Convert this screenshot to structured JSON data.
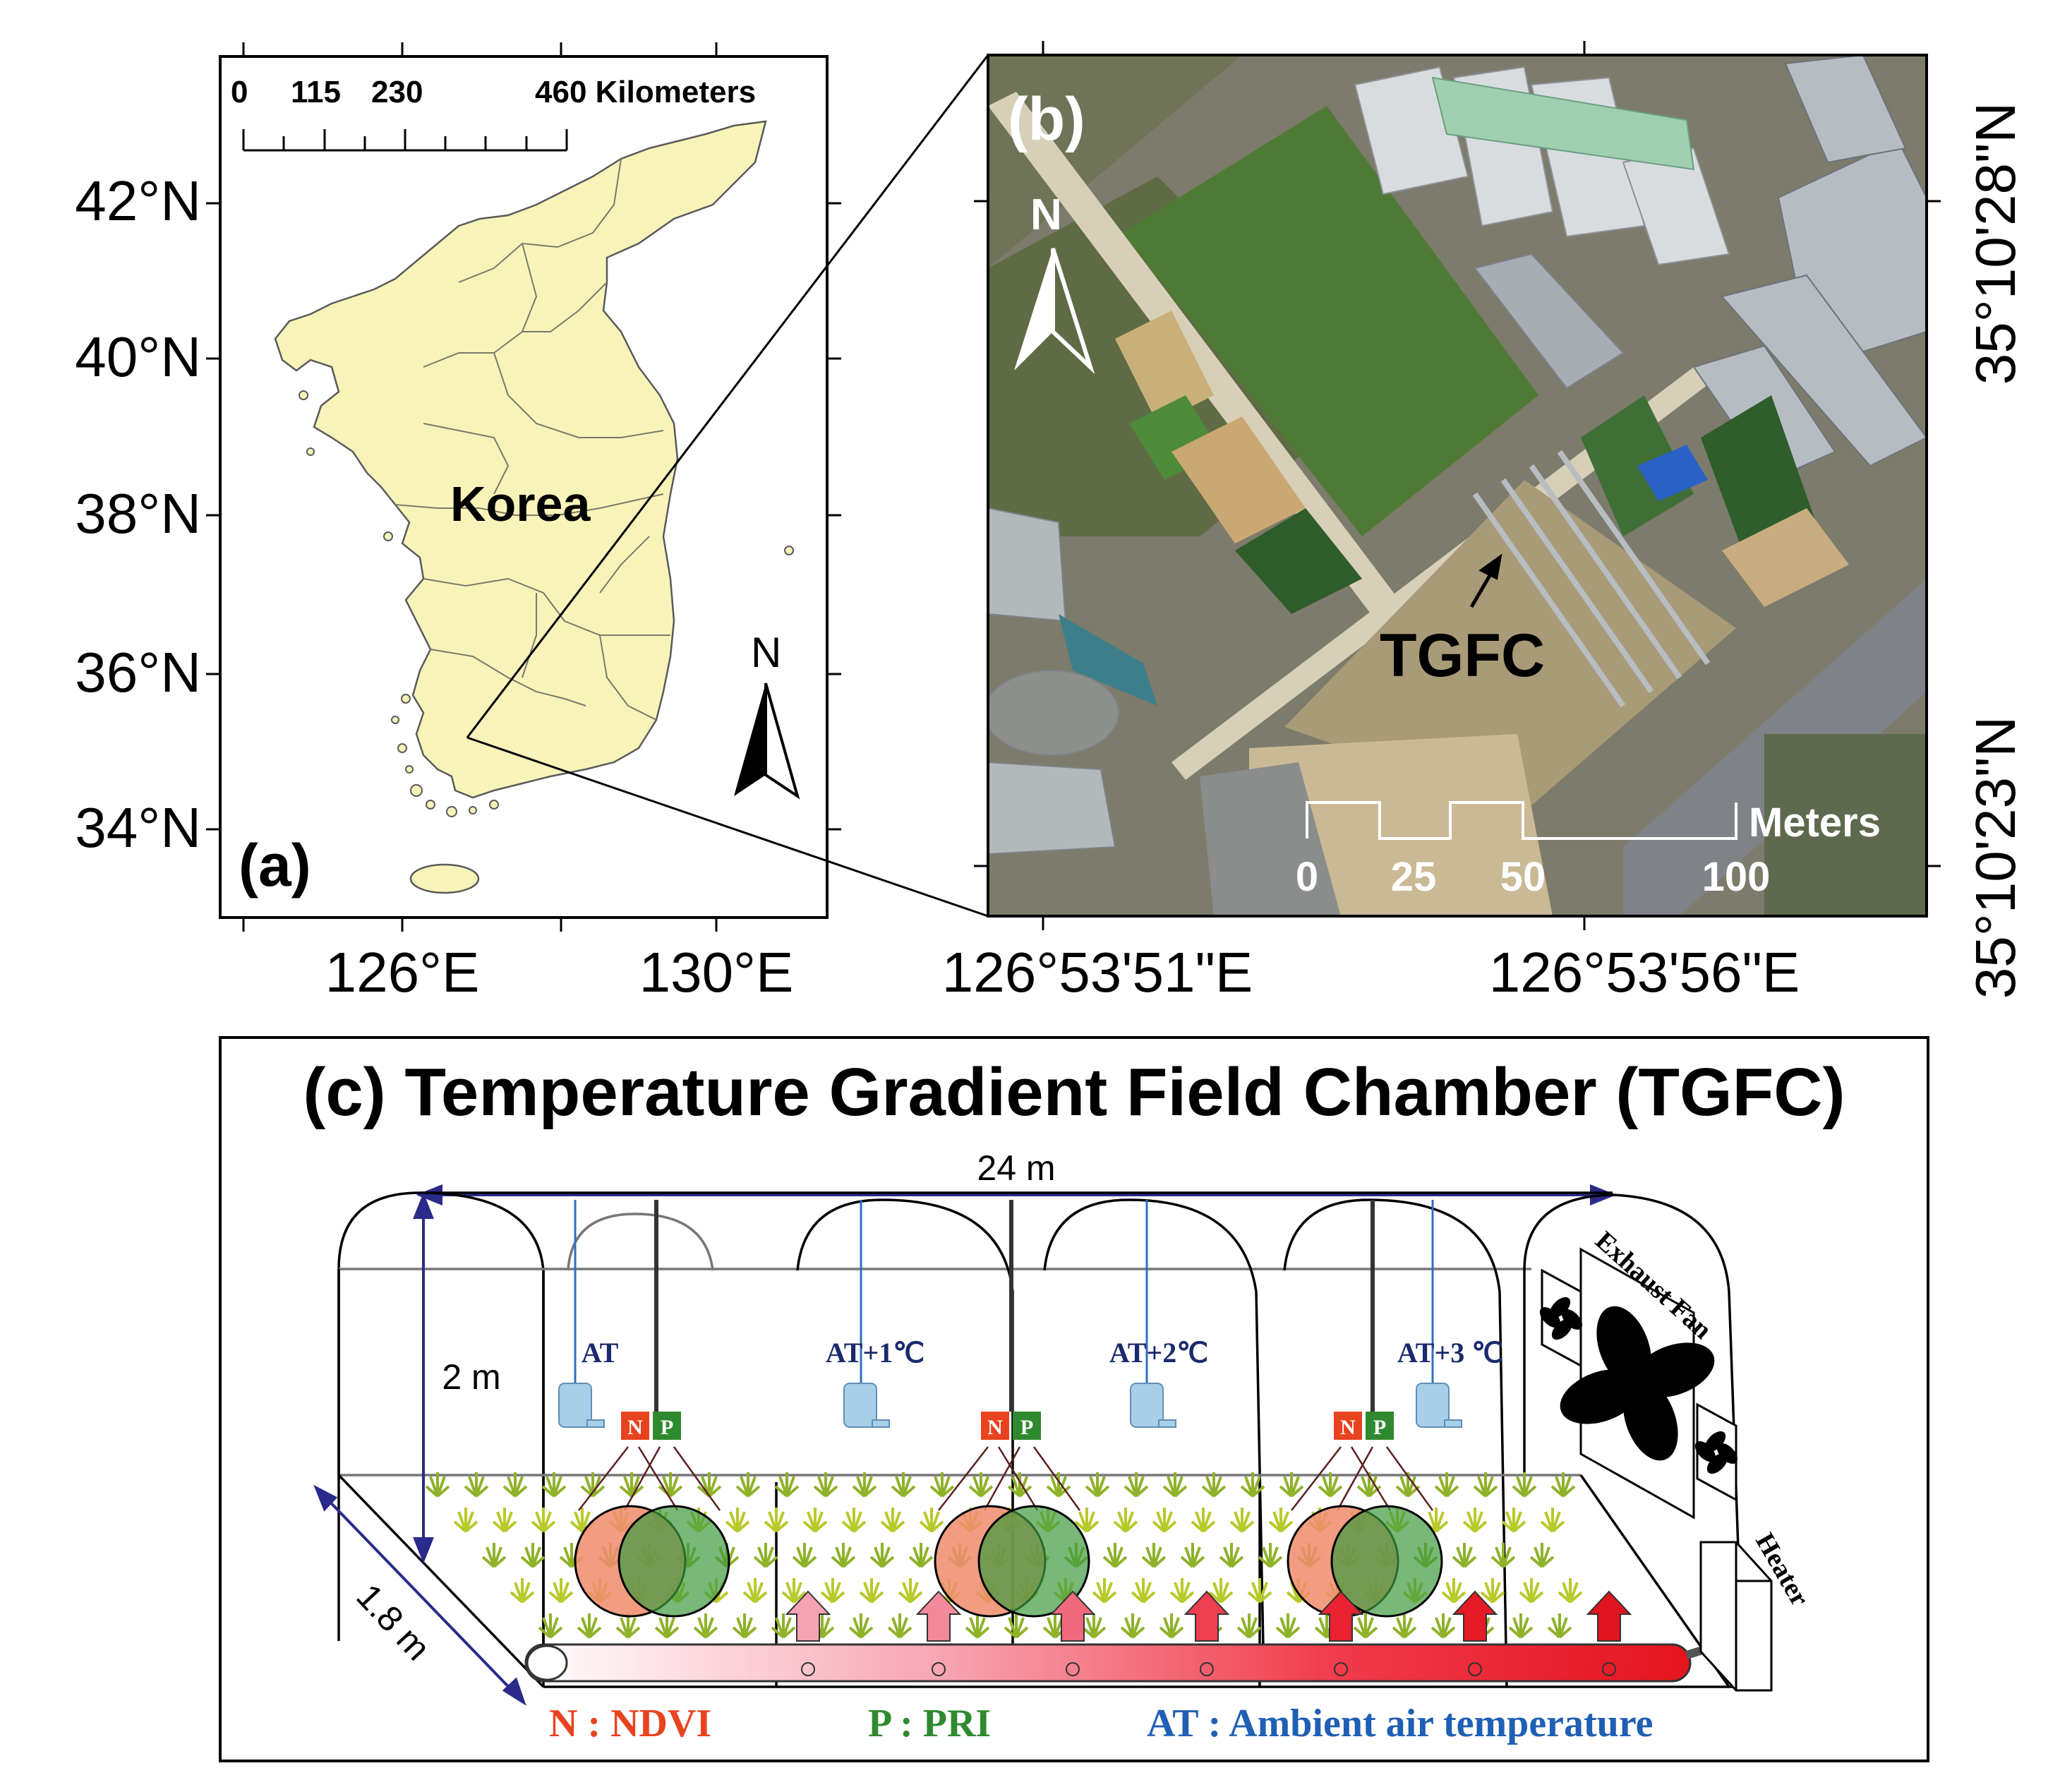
{
  "panel_a": {
    "label": "(a)",
    "country": "Korea",
    "scale_ticks": [
      "0",
      "115",
      "230",
      "460 Kilometers"
    ],
    "north": "N",
    "lat_ticks": [
      "42°N",
      "40°N",
      "38°N",
      "36°N",
      "34°N"
    ],
    "lon_ticks": [
      "126°E",
      "130°E"
    ],
    "land_color": "#f8f3b9"
  },
  "panel_b": {
    "label": "(b)",
    "north": "N",
    "site": "TGFC",
    "scale_title": "Meters",
    "scale_ticks": [
      "0",
      "25",
      "50",
      "100"
    ],
    "lat_ticks": [
      "35°10'28\"N",
      "35°10'23\"N"
    ],
    "lon_ticks": [
      "126°53'51\"E",
      "126°53'56\"E"
    ]
  },
  "panel_c": {
    "title": "(c) Temperature Gradient Field Chamber (TGFC)",
    "length": "24 m",
    "height": "2 m",
    "width": "1.8 m",
    "sections": [
      "AT",
      "AT+1℃",
      "AT+2℃",
      "AT+3 ℃"
    ],
    "sensor_n": "N",
    "sensor_p": "P",
    "fan_label": "Exhaust Fan",
    "heater_label": "Heater",
    "legend": {
      "n": "N : NDVI",
      "p": "P : PRI",
      "at": "AT : Ambient air temperature"
    },
    "colors": {
      "ndvi": "#e8431f",
      "pri": "#2f8a2f",
      "at": "#1f5fb4",
      "heat": "#ee1c24"
    }
  }
}
